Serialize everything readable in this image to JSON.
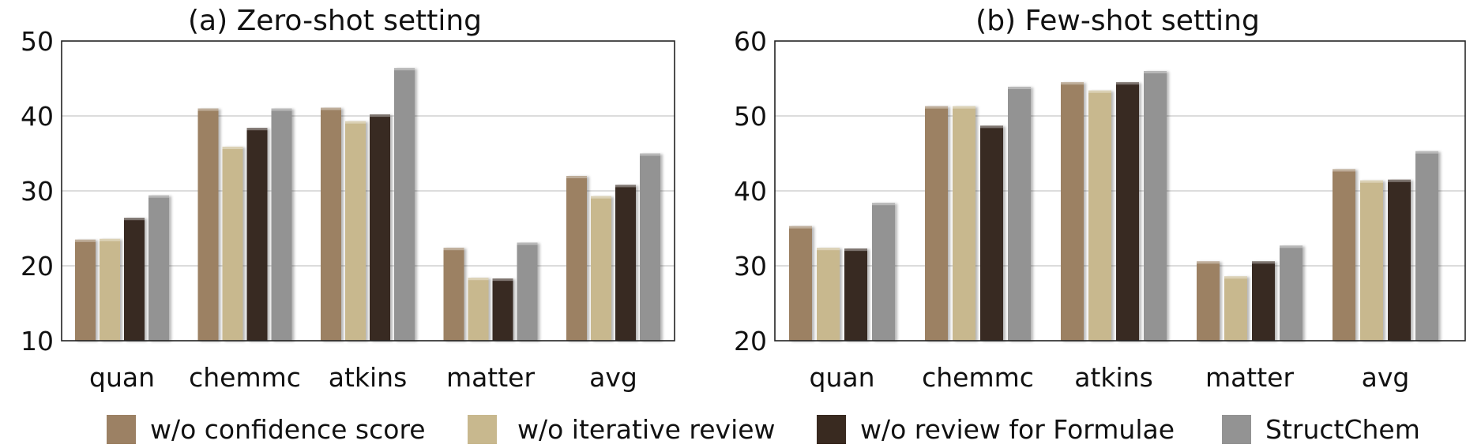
{
  "colors": {
    "w/o confidence score": "#9c8164",
    "w/o iterative review": "#c8b88e",
    "w/o review for Formulae": "#392a20",
    "StructChem": "#939393"
  },
  "legend": [
    "w/o confidence score",
    "w/o iterative review",
    "w/o review for Formulae",
    "StructChem"
  ],
  "chart_data": [
    {
      "type": "bar",
      "title": "(a) Zero-shot setting",
      "categories": [
        "quan",
        "chemmc",
        "atkins",
        "matter",
        "avg"
      ],
      "ylim": [
        10,
        50
      ],
      "yticks": [
        10,
        20,
        30,
        40,
        50
      ],
      "grid": true,
      "series": [
        {
          "name": "w/o confidence score",
          "values": [
            23.5,
            41.0,
            41.1,
            22.4,
            32.0
          ]
        },
        {
          "name": "w/o iterative review",
          "values": [
            23.6,
            35.9,
            39.3,
            18.4,
            29.3
          ]
        },
        {
          "name": "w/o review for Formulae",
          "values": [
            26.4,
            38.4,
            40.2,
            18.3,
            30.8
          ]
        },
        {
          "name": "StructChem",
          "values": [
            29.4,
            41.0,
            46.4,
            23.1,
            35.0
          ]
        }
      ]
    },
    {
      "type": "bar",
      "title": "(b) Few-shot setting",
      "categories": [
        "quan",
        "chemmc",
        "atkins",
        "matter",
        "avg"
      ],
      "ylim": [
        20,
        60
      ],
      "yticks": [
        20,
        30,
        40,
        50,
        60
      ],
      "grid": true,
      "series": [
        {
          "name": "w/o confidence score",
          "values": [
            35.3,
            51.3,
            54.5,
            30.6,
            42.9
          ]
        },
        {
          "name": "w/o iterative review",
          "values": [
            32.4,
            51.3,
            53.4,
            28.6,
            41.4
          ]
        },
        {
          "name": "w/o review for Formulae",
          "values": [
            32.3,
            48.7,
            54.5,
            30.6,
            41.5
          ]
        },
        {
          "name": "StructChem",
          "values": [
            38.4,
            53.9,
            56.0,
            32.7,
            45.3
          ]
        }
      ]
    }
  ]
}
